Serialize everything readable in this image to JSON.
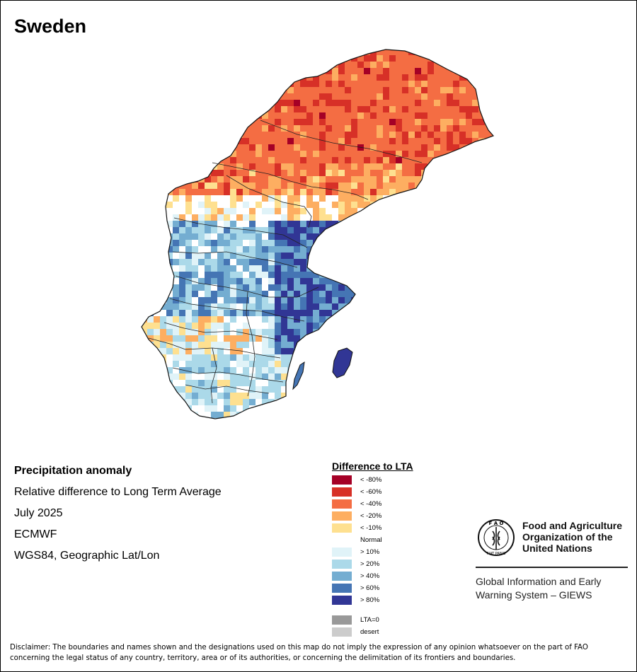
{
  "title": "Sweden",
  "info": {
    "heading": "Precipitation anomaly",
    "subtitle": "Relative difference to Long Term Average",
    "period": "July 2025",
    "model": "ECMWF",
    "projection": "WGS84, Geographic Lat/Lon"
  },
  "legend": {
    "title": "Difference to LTA",
    "items": [
      {
        "label": "< -80%",
        "color": "#a50026",
        "swatch": true
      },
      {
        "label": "< -60%",
        "color": "#d73027",
        "swatch": true
      },
      {
        "label": "< -40%",
        "color": "#f46d43",
        "swatch": true
      },
      {
        "label": "< -20%",
        "color": "#fdae61",
        "swatch": true
      },
      {
        "label": "< -10%",
        "color": "#fee090",
        "swatch": true
      },
      {
        "label": "Normal",
        "color": "#ffffff",
        "swatch": false
      },
      {
        "label": "> 10%",
        "color": "#e0f3f8",
        "swatch": true
      },
      {
        "label": "> 20%",
        "color": "#abd9e9",
        "swatch": true
      },
      {
        "label": "> 40%",
        "color": "#74add1",
        "swatch": true
      },
      {
        "label": "> 60%",
        "color": "#4575b4",
        "swatch": true
      },
      {
        "label": "> 80%",
        "color": "#313695",
        "swatch": true
      }
    ],
    "extra": [
      {
        "label": "LTA=0",
        "color": "#999999"
      },
      {
        "label": "desert",
        "color": "#cccccc"
      }
    ]
  },
  "org": {
    "name_line1": "Food and Agriculture",
    "name_line2": "Organization of the",
    "name_line3": "United Nations",
    "logo_text_top": "F A O",
    "logo_text_bottom": "FIAT PANIS",
    "system_line1": "Global Information and Early",
    "system_line2": "Warning System – GIEWS"
  },
  "disclaimer": "Disclaimer: The boundaries and names shown and the designations used on this map do not imply the expression of any opinion whatsoever on the part of FAO concerning the legal status of any country, territory, area or of its authorities, or concerning the delimitation of its frontiers and boundaries.",
  "map": {
    "regions": [
      {
        "name": "north",
        "category": "< -40%",
        "color": "#f46d43"
      },
      {
        "name": "north-east pockets",
        "category": "< -60%",
        "color": "#d73027"
      },
      {
        "name": "central-north",
        "category": "< -20%",
        "color": "#fdae61"
      },
      {
        "name": "transition",
        "category": "Normal",
        "color": "#ffffff"
      },
      {
        "name": "central",
        "category": "> 40%",
        "color": "#74add1"
      },
      {
        "name": "east-central",
        "category": "> 80%",
        "color": "#313695"
      },
      {
        "name": "south-west",
        "category": "< -20%",
        "color": "#fdae61"
      },
      {
        "name": "south",
        "category": "> 20%",
        "color": "#abd9e9"
      },
      {
        "name": "gotland",
        "category": "> 80%",
        "color": "#313695"
      }
    ]
  }
}
